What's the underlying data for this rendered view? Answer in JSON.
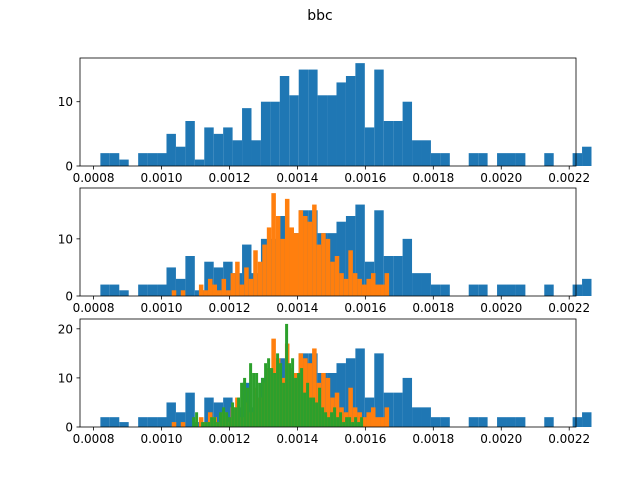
{
  "figure": {
    "title": "bbc"
  },
  "colors": {
    "blue": "#1f77b4",
    "orange": "#ff7f0e",
    "green": "#2ca02c"
  },
  "chart_data": [
    {
      "type": "histogram",
      "xlim": [
        0.00076,
        0.00222
      ],
      "ylim": [
        0,
        16.8
      ],
      "xticks": [
        "0.0008",
        "0.0010",
        "0.0012",
        "0.0014",
        "0.0016",
        "0.0018",
        "0.0020",
        "0.0022"
      ],
      "yticks": [
        "0",
        "10"
      ],
      "series": [
        {
          "color": "blue",
          "bin_start": 0.00082,
          "bin_width": 2.78e-05,
          "counts": [
            2,
            2,
            1,
            0,
            2,
            2,
            2,
            5,
            3,
            7,
            1,
            6,
            5,
            6,
            4,
            9,
            4,
            10,
            10,
            14,
            11,
            15,
            15,
            11,
            11,
            13,
            14,
            16,
            6,
            15,
            7,
            7,
            10,
            4,
            4,
            2,
            2,
            0,
            0,
            2,
            2,
            0,
            2,
            2,
            2,
            0,
            0,
            2,
            0,
            0,
            2,
            3
          ]
        }
      ]
    },
    {
      "type": "histogram",
      "xlim": [
        0.00076,
        0.00222
      ],
      "ylim": [
        0,
        18.9
      ],
      "xticks": [
        "0.0008",
        "0.0010",
        "0.0012",
        "0.0014",
        "0.0016",
        "0.0018",
        "0.0020",
        "0.0022"
      ],
      "yticks": [
        "0",
        "10"
      ],
      "series": [
        {
          "color": "blue",
          "bin_start": 0.00082,
          "bin_width": 2.78e-05,
          "counts": [
            2,
            2,
            1,
            0,
            2,
            2,
            2,
            5,
            3,
            7,
            1,
            6,
            5,
            6,
            4,
            9,
            4,
            10,
            10,
            14,
            11,
            15,
            15,
            11,
            11,
            13,
            14,
            16,
            6,
            15,
            7,
            7,
            10,
            4,
            4,
            2,
            2,
            0,
            0,
            2,
            2,
            0,
            2,
            2,
            2,
            0,
            0,
            2,
            0,
            0,
            2,
            3
          ]
        },
        {
          "color": "orange",
          "bin_start": 0.00103,
          "bin_width": 1.333e-05,
          "counts": [
            1,
            0,
            1,
            0,
            0,
            0,
            2,
            1,
            3,
            2,
            1,
            3,
            1,
            4,
            6,
            2,
            5,
            3,
            8,
            6,
            9,
            12,
            18,
            14,
            10,
            17,
            12,
            11,
            15,
            14,
            13,
            16,
            9,
            11,
            10,
            6,
            7,
            4,
            3,
            8,
            4,
            3,
            2,
            3,
            4,
            2,
            2,
            4
          ]
        }
      ]
    },
    {
      "type": "histogram",
      "xlim": [
        0.00076,
        0.00222
      ],
      "ylim": [
        0,
        22
      ],
      "xticks": [
        "0.0008",
        "0.0010",
        "0.0012",
        "0.0014",
        "0.0016",
        "0.0018",
        "0.0020",
        "0.0022"
      ],
      "yticks": [
        "0",
        "10",
        "20"
      ],
      "series": [
        {
          "color": "blue",
          "bin_start": 0.00082,
          "bin_width": 2.78e-05,
          "counts": [
            2,
            2,
            1,
            0,
            2,
            2,
            2,
            5,
            3,
            7,
            1,
            6,
            5,
            6,
            4,
            9,
            4,
            10,
            10,
            14,
            11,
            15,
            15,
            11,
            11,
            13,
            14,
            16,
            6,
            15,
            7,
            7,
            10,
            4,
            4,
            2,
            2,
            0,
            0,
            2,
            2,
            0,
            2,
            2,
            2,
            0,
            0,
            2,
            0,
            0,
            2,
            3
          ]
        },
        {
          "color": "orange",
          "bin_start": 0.00103,
          "bin_width": 1.333e-05,
          "counts": [
            1,
            0,
            1,
            0,
            0,
            0,
            2,
            1,
            3,
            2,
            1,
            3,
            1,
            4,
            6,
            2,
            5,
            3,
            8,
            6,
            9,
            12,
            18,
            14,
            10,
            17,
            12,
            11,
            15,
            14,
            13,
            16,
            9,
            11,
            10,
            6,
            7,
            4,
            3,
            8,
            4,
            3,
            2,
            3,
            4,
            2,
            2,
            4
          ]
        },
        {
          "color": "green",
          "bin_start": 0.00109,
          "bin_width": 8.83e-06,
          "counts": [
            2,
            3,
            0,
            1,
            1,
            1,
            2,
            2,
            1,
            3,
            4,
            3,
            2,
            5,
            4,
            6,
            9,
            10,
            8,
            13,
            11,
            11,
            9,
            10,
            13,
            14,
            12,
            11,
            15,
            13,
            9,
            21,
            13,
            14,
            10,
            11,
            12,
            7,
            9,
            6,
            6,
            5,
            8,
            4,
            3,
            2,
            3,
            4,
            2,
            3,
            1,
            2,
            2,
            1,
            2,
            1,
            2
          ]
        }
      ]
    }
  ]
}
